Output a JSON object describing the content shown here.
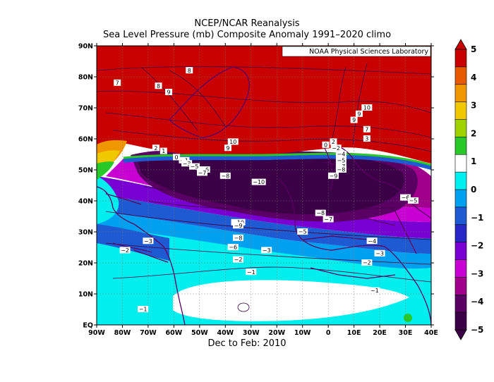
{
  "title_line1": "NCEP/NCAR Reanalysis",
  "title_line2": "Sea Level Pressure (mb) Composite Anomaly 1991–2020 climo",
  "subtitle": "Dec to Feb: 2010",
  "credit": "NOAA Physical Sciences Laboratory",
  "lat_ticks": [
    "90N",
    "80N",
    "70N",
    "60N",
    "50N",
    "40N",
    "30N",
    "20N",
    "10N",
    "EQ"
  ],
  "lon_ticks": [
    "90W",
    "80W",
    "70W",
    "60W",
    "50W",
    "40W",
    "30W",
    "20W",
    "10W",
    "0",
    "10E",
    "20E",
    "30E",
    "40E"
  ],
  "colorbar": {
    "labels": [
      "5",
      "4",
      "3",
      "2",
      "1",
      "0",
      "−1",
      "−2",
      "−3",
      "−4",
      "−5"
    ],
    "colors": [
      "#c80000",
      "#e85a00",
      "#f09600",
      "#f0c800",
      "#a0d200",
      "#28c828",
      "#ffffff",
      "#00f0f0",
      "#00a0f0",
      "#1e5ad2",
      "#2828c8",
      "#7800d2",
      "#c800d2",
      "#a0008c",
      "#5a0064",
      "#3c0046"
    ]
  },
  "contour_labels": [
    {
      "t": "8",
      "lon": -54,
      "lat": 82
    },
    {
      "t": "7",
      "lon": -82,
      "lat": 78
    },
    {
      "t": "8",
      "lon": -66,
      "lat": 77
    },
    {
      "t": "9",
      "lon": -62,
      "lat": 75
    },
    {
      "t": "10",
      "lon": -37,
      "lat": 59
    },
    {
      "t": "10",
      "lon": 15,
      "lat": 70
    },
    {
      "t": "9",
      "lon": 12,
      "lat": 68
    },
    {
      "t": "9",
      "lon": 10,
      "lat": 66
    },
    {
      "t": "7",
      "lon": 15,
      "lat": 63
    },
    {
      "t": "3",
      "lon": 15,
      "lat": 60
    },
    {
      "t": "2",
      "lon": -67,
      "lat": 57
    },
    {
      "t": "1",
      "lon": -64,
      "lat": 56
    },
    {
      "t": "0",
      "lon": -59,
      "lat": 54
    },
    {
      "t": "−1",
      "lon": -56,
      "lat": 53
    },
    {
      "t": "−3",
      "lon": -55,
      "lat": 52
    },
    {
      "t": "−5",
      "lon": -52,
      "lat": 51
    },
    {
      "t": "−6",
      "lon": -48,
      "lat": 50
    },
    {
      "t": "−7",
      "lon": -49,
      "lat": 49
    },
    {
      "t": "−8",
      "lon": -40,
      "lat": 48
    },
    {
      "t": "9",
      "lon": -39,
      "lat": 57
    },
    {
      "t": "2",
      "lon": 2,
      "lat": 59
    },
    {
      "t": "0",
      "lon": -1,
      "lat": 58
    },
    {
      "t": "−2",
      "lon": 3,
      "lat": 57
    },
    {
      "t": "−4",
      "lon": 5,
      "lat": 55
    },
    {
      "t": "−5",
      "lon": 5,
      "lat": 53
    },
    {
      "t": "−7",
      "lon": 5,
      "lat": 51
    },
    {
      "t": "−8",
      "lon": 5,
      "lat": 50
    },
    {
      "t": "−9",
      "lon": 2,
      "lat": 48
    },
    {
      "t": "−10",
      "lon": -27,
      "lat": 46
    },
    {
      "t": "−8",
      "lon": -3,
      "lat": 36
    },
    {
      "t": "−7",
      "lon": 0,
      "lat": 34
    },
    {
      "t": "−6",
      "lon": 30,
      "lat": 41
    },
    {
      "t": "−5",
      "lon": 33,
      "lat": 40
    },
    {
      "t": "−10",
      "lon": -35,
      "lat": 33
    },
    {
      "t": "−9",
      "lon": -35,
      "lat": 32
    },
    {
      "t": "−5",
      "lon": -10,
      "lat": 30
    },
    {
      "t": "−8",
      "lon": -35,
      "lat": 28
    },
    {
      "t": "−6",
      "lon": -37,
      "lat": 25
    },
    {
      "t": "−3",
      "lon": -70,
      "lat": 27
    },
    {
      "t": "−4",
      "lon": 17,
      "lat": 27
    },
    {
      "t": "−3",
      "lon": 20,
      "lat": 23
    },
    {
      "t": "−3",
      "lon": -24,
      "lat": 24
    },
    {
      "t": "−2",
      "lon": -79,
      "lat": 24
    },
    {
      "t": "−2",
      "lon": -35,
      "lat": 21
    },
    {
      "t": "−2",
      "lon": 15,
      "lat": 20
    },
    {
      "t": "−1",
      "lon": -30,
      "lat": 17
    },
    {
      "t": "−1",
      "lon": 18,
      "lat": 11
    },
    {
      "t": "−1",
      "lon": -72,
      "lat": 5
    }
  ]
}
